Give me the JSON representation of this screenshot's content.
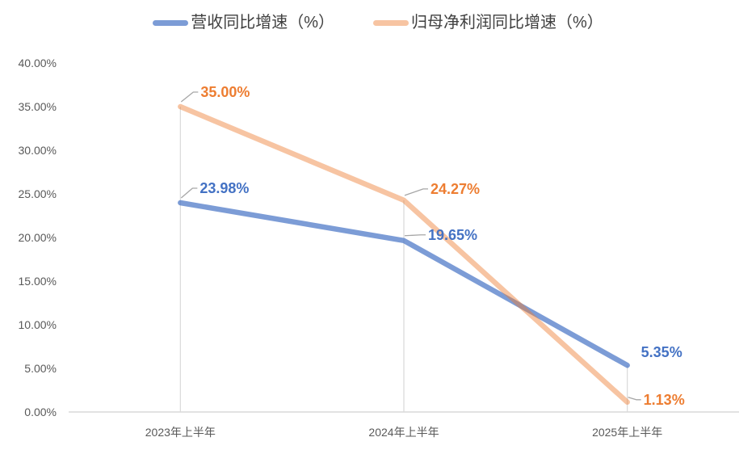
{
  "chart_data": {
    "type": "line",
    "title": "",
    "categories": [
      "2023年上半年",
      "2024年上半年",
      "2025年上半年"
    ],
    "series": [
      {
        "name": "营收同比增速（%）",
        "values": [
          23.98,
          19.65,
          5.35
        ],
        "labels": [
          "23.98%",
          "19.65%",
          "5.35%"
        ],
        "color": "#4472C4",
        "line_opacity": 0.7,
        "label_color": "#4472C4",
        "label_offsets": [
          {
            "dx": 24,
            "dy": -18,
            "leader": true
          },
          {
            "dx": 30,
            "dy": -7,
            "leader": true
          },
          {
            "dx": 17,
            "dy": -16,
            "leader": false
          }
        ]
      },
      {
        "name": "归母净利润同比增速（%）",
        "values": [
          35.0,
          24.27,
          1.13
        ],
        "labels": [
          "35.00%",
          "24.27%",
          "1.13%"
        ],
        "color": "#ED7D31",
        "line_opacity": 0.45,
        "label_color": "#ED7D31",
        "label_offsets": [
          {
            "dx": 25,
            "dy": -18,
            "leader": true
          },
          {
            "dx": 33,
            "dy": -14,
            "leader": true
          },
          {
            "dx": 20,
            "dy": -3,
            "leader": true
          }
        ]
      }
    ],
    "y_axis": {
      "min": 0,
      "max": 40,
      "tick_values": [
        40,
        35,
        30,
        25,
        20,
        15,
        10,
        5,
        0
      ],
      "tick_labels": [
        "40.00%",
        "35.00%",
        "30.00%",
        "25.00%",
        "20.00%",
        "15.00%",
        "10.00%",
        "5.00%",
        "0.00%"
      ]
    },
    "grid": false,
    "drop_lines": true,
    "legend_position": "top",
    "colors": {
      "axis_line": "#D9D9D9",
      "drop_line": "#D9D9D9",
      "leader_line": "#A6A6A6",
      "tick_text": "#595959",
      "legend_text": "#404040",
      "background": "#FFFFFF"
    }
  }
}
